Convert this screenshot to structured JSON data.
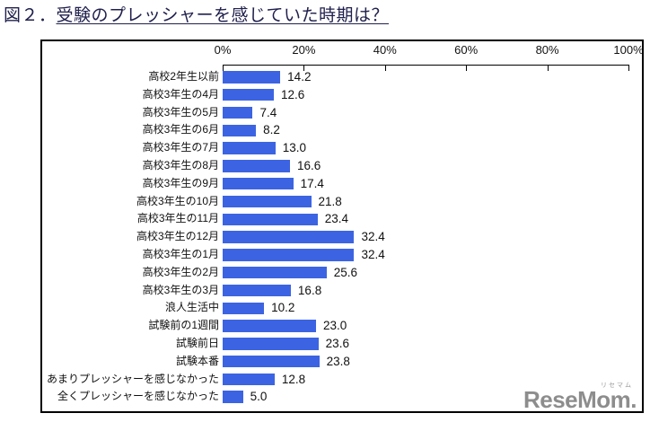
{
  "title": {
    "prefix": "図２．",
    "main": "受験のプレッシャーを感じていた時期は？"
  },
  "chart_data": {
    "type": "bar",
    "orientation": "horizontal",
    "title": "受験のプレッシャーを感じていた時期は？",
    "categories": [
      "高校2年生以前",
      "高校3年生の4月",
      "高校3年生の5月",
      "高校3年生の6月",
      "高校3年生の7月",
      "高校3年生の8月",
      "高校3年生の9月",
      "高校3年生の10月",
      "高校3年生の11月",
      "高校3年生の12月",
      "高校3年生の1月",
      "高校3年生の2月",
      "高校3年生の3月",
      "浪人生活中",
      "試験前の1週間",
      "試験前日",
      "試験本番",
      "あまりプレッシャーを感じなかった",
      "全くプレッシャーを感じなかった"
    ],
    "values": [
      14.2,
      12.6,
      7.4,
      8.2,
      13.0,
      16.6,
      17.4,
      21.8,
      23.4,
      32.4,
      32.4,
      25.6,
      16.8,
      10.2,
      23.0,
      23.6,
      23.8,
      12.8,
      5.0
    ],
    "xlabel": "",
    "ylabel": "",
    "xlim": [
      0,
      100
    ],
    "x_ticks": [
      "0%",
      "20%",
      "40%",
      "60%",
      "80%",
      "100%"
    ],
    "grid": false,
    "legend": "none",
    "bar_color": "#3C64E2",
    "value_labels_shown": true
  },
  "logo": {
    "ruby": "リセマム",
    "text": "ReseMom."
  },
  "colors": {
    "title": "#20204e",
    "bar": "#3C64E2",
    "axis": "#000000",
    "logo": "#8d8d8d"
  }
}
